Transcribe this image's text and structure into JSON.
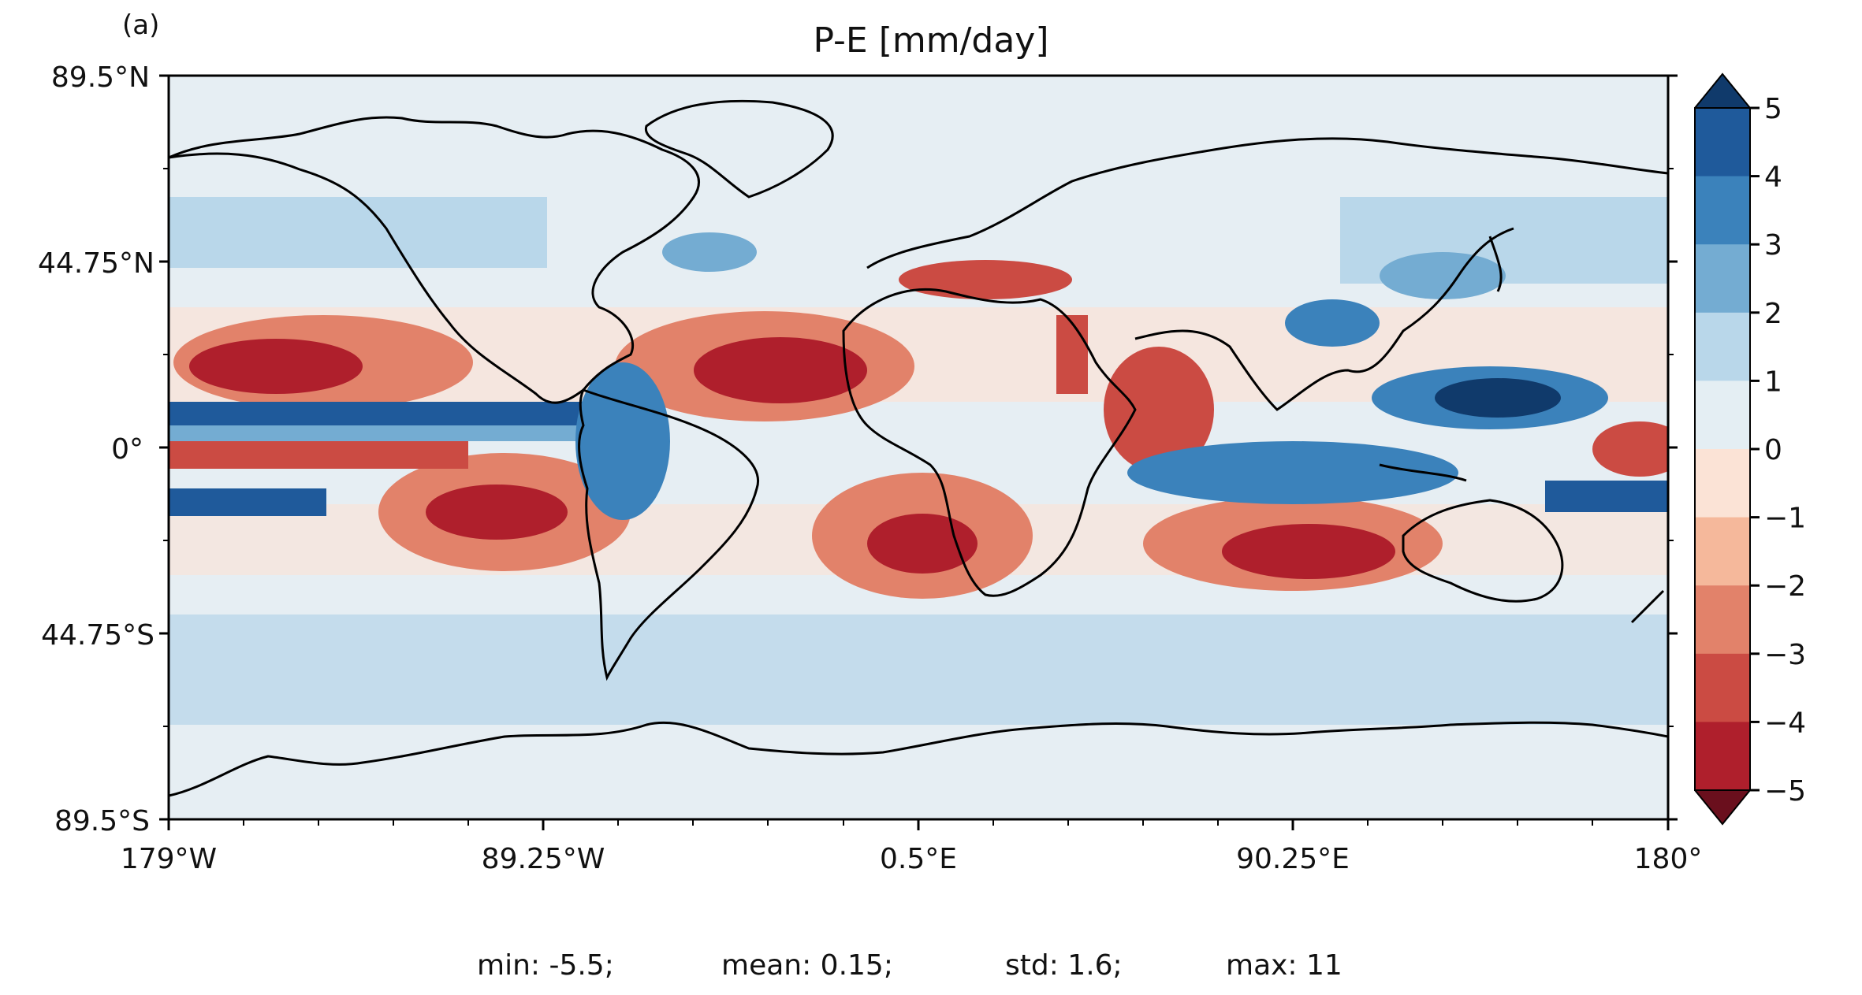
{
  "figure": {
    "panel_label": "(a)",
    "title": "P-E [mm/day]"
  },
  "map": {
    "y_ticks": [
      "89.5°N",
      "44.75°N",
      "0°",
      "44.75°S",
      "89.5°S"
    ],
    "x_ticks": [
      "179°W",
      "89.25°W",
      "0.5°E",
      "90.25°E",
      "180°"
    ],
    "land_color": "#e6eef3",
    "coastline_color": "#000000"
  },
  "colorbar": {
    "tick_labels": [
      "5",
      "4",
      "3",
      "2",
      "1",
      "0",
      "−1",
      "−2",
      "−3",
      "−4",
      "−5"
    ],
    "colors_top_to_bottom": [
      "#1f5a9b",
      "#3b82bb",
      "#74acd2",
      "#b9d7ea",
      "#e4eef3",
      "#fbe3d6",
      "#f5b89b",
      "#e2826a",
      "#cb4b43",
      "#af1f2c"
    ],
    "over_color": "#103a6b",
    "under_color": "#6a0f1d"
  },
  "stats": {
    "min": "min: -5.5;",
    "mean": "mean: 0.15;",
    "std": "std: 1.6;",
    "max": "max: 11"
  }
}
